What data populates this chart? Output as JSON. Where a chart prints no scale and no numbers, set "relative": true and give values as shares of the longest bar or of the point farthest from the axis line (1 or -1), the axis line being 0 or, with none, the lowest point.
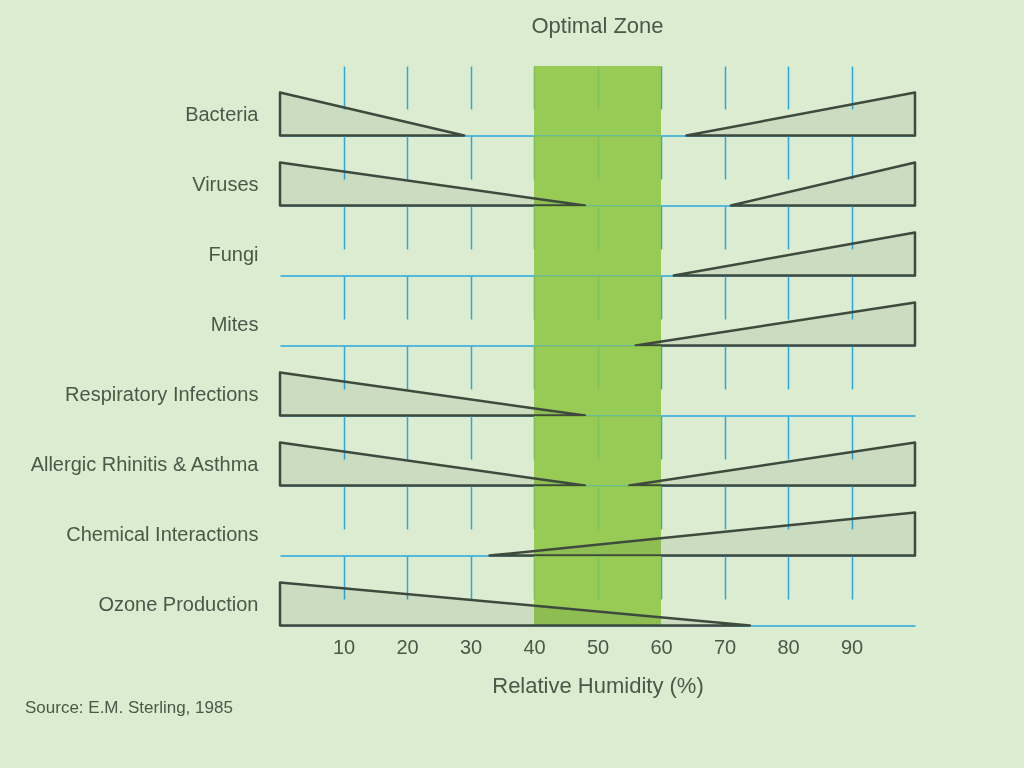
{
  "chart_data": [
    {
      "type": "area",
      "ylabel": "Bacteria",
      "relative": true,
      "xlim": [
        0,
        100
      ],
      "xticks": [
        10,
        20,
        30,
        40,
        50,
        60,
        70,
        80,
        90
      ],
      "tick_labels": false,
      "grid": "x",
      "bands": [
        {
          "axis": "x",
          "from": 40,
          "to": 60,
          "label": "Optimal Zone",
          "color": "#8cc63f"
        }
      ],
      "series": [
        {
          "color": "#3f4a3f",
          "x": [
            0,
            29
          ],
          "values": [
            1,
            0
          ]
        },
        {
          "color": "#3f4a3f",
          "x": [
            64,
            100
          ],
          "values": [
            0,
            1
          ]
        }
      ]
    },
    {
      "type": "area",
      "ylabel": "Viruses",
      "relative": true,
      "xlim": [
        0,
        100
      ],
      "xticks": [
        10,
        20,
        30,
        40,
        50,
        60,
        70,
        80,
        90
      ],
      "tick_labels": false,
      "grid": "x",
      "bands": [
        {
          "axis": "x",
          "from": 40,
          "to": 60,
          "color": "#8cc63f"
        }
      ],
      "series": [
        {
          "color": "#3f4a3f",
          "x": [
            0,
            48
          ],
          "values": [
            1,
            0
          ]
        },
        {
          "color": "#3f4a3f",
          "x": [
            71,
            100
          ],
          "values": [
            0,
            1
          ]
        }
      ]
    },
    {
      "type": "area",
      "ylabel": "Fungi",
      "relative": true,
      "xlim": [
        0,
        100
      ],
      "xticks": [
        10,
        20,
        30,
        40,
        50,
        60,
        70,
        80,
        90
      ],
      "tick_labels": false,
      "grid": "x",
      "bands": [
        {
          "axis": "x",
          "from": 40,
          "to": 60,
          "color": "#8cc63f"
        }
      ],
      "series": [
        {
          "color": "#3f4a3f",
          "x": [
            62,
            100
          ],
          "values": [
            0,
            1
          ]
        }
      ]
    },
    {
      "type": "area",
      "ylabel": "Mites",
      "relative": true,
      "xlim": [
        0,
        100
      ],
      "xticks": [
        10,
        20,
        30,
        40,
        50,
        60,
        70,
        80,
        90
      ],
      "tick_labels": false,
      "grid": "x",
      "bands": [
        {
          "axis": "x",
          "from": 40,
          "to": 60,
          "color": "#8cc63f"
        }
      ],
      "series": [
        {
          "color": "#3f4a3f",
          "x": [
            56,
            100
          ],
          "values": [
            0,
            1
          ]
        }
      ]
    },
    {
      "type": "area",
      "ylabel": "Respiratory Infections",
      "relative": true,
      "xlim": [
        0,
        100
      ],
      "xticks": [
        10,
        20,
        30,
        40,
        50,
        60,
        70,
        80,
        90
      ],
      "tick_labels": false,
      "grid": "x",
      "bands": [
        {
          "axis": "x",
          "from": 40,
          "to": 60,
          "color": "#8cc63f"
        }
      ],
      "series": [
        {
          "color": "#3f4a3f",
          "x": [
            0,
            48
          ],
          "values": [
            1,
            0
          ]
        }
      ]
    },
    {
      "type": "area",
      "ylabel": "Allergic Rhinitis & Asthma",
      "relative": true,
      "xlim": [
        0,
        100
      ],
      "xticks": [
        10,
        20,
        30,
        40,
        50,
        60,
        70,
        80,
        90
      ],
      "tick_labels": false,
      "grid": "x",
      "bands": [
        {
          "axis": "x",
          "from": 40,
          "to": 60,
          "color": "#8cc63f"
        }
      ],
      "series": [
        {
          "color": "#3f4a3f",
          "x": [
            0,
            48
          ],
          "values": [
            1,
            0
          ]
        },
        {
          "color": "#3f4a3f",
          "x": [
            55,
            100
          ],
          "values": [
            0,
            1
          ]
        }
      ]
    },
    {
      "type": "area",
      "ylabel": "Chemical Interactions",
      "relative": true,
      "xlim": [
        0,
        100
      ],
      "xticks": [
        10,
        20,
        30,
        40,
        50,
        60,
        70,
        80,
        90
      ],
      "tick_labels": false,
      "grid": "x",
      "bands": [
        {
          "axis": "x",
          "from": 40,
          "to": 60,
          "color": "#8cc63f"
        }
      ],
      "series": [
        {
          "color": "#3f4a3f",
          "x": [
            33,
            100
          ],
          "values": [
            0,
            1
          ]
        }
      ]
    },
    {
      "type": "area",
      "ylabel": "Ozone Production",
      "xlabel": "Relative Humidity (%)",
      "relative": true,
      "xlim": [
        0,
        100
      ],
      "xticks": [
        10,
        20,
        30,
        40,
        50,
        60,
        70,
        80,
        90
      ],
      "tick_labels": "x",
      "grid": "x",
      "bands": [
        {
          "axis": "x",
          "from": 40,
          "to": 60,
          "color": "#8cc63f"
        }
      ],
      "annotations": [
        "Source: E.M. Sterling, 1985"
      ],
      "series": [
        {
          "color": "#3f4a3f",
          "x": [
            0,
            74
          ],
          "values": [
            1,
            0
          ]
        }
      ]
    }
  ]
}
